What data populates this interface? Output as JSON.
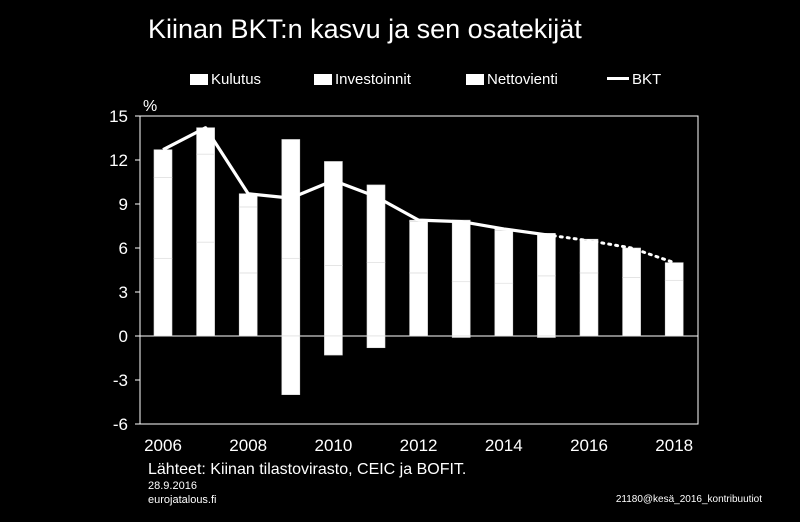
{
  "chart_data": {
    "type": "bar",
    "title": "Kiinan BKT:n kasvu ja sen osatekijät",
    "ylabel": "%",
    "xlabel": "",
    "ylim": [
      -6,
      15
    ],
    "yticks": [
      15,
      12,
      9,
      6,
      3,
      0,
      -3,
      -6
    ],
    "xticks": [
      "2006",
      "2008",
      "2010",
      "2012",
      "2014",
      "2016",
      "2018"
    ],
    "categories": [
      "2006",
      "2007",
      "2008",
      "2009",
      "2010",
      "2011",
      "2012",
      "2013",
      "2014",
      "2015",
      "2016",
      "2017",
      "2018"
    ],
    "series": [
      {
        "name": "Kulutus",
        "values": [
          5.3,
          6.4,
          4.3,
          5.3,
          4.8,
          5.0,
          4.3,
          3.7,
          3.6,
          4.1,
          4.3,
          4.0,
          3.8
        ]
      },
      {
        "name": "Investoinnit",
        "values": [
          5.5,
          6.0,
          4.5,
          8.1,
          7.1,
          5.3,
          3.5,
          4.2,
          3.6,
          2.9,
          2.2,
          2.0,
          1.2
        ]
      },
      {
        "name": "Nettovienti",
        "values": [
          1.9,
          1.8,
          0.9,
          -4.0,
          -1.3,
          -0.8,
          0.1,
          -0.1,
          0.1,
          -0.1,
          0.1,
          0.0,
          0.0
        ]
      },
      {
        "name": "BKT",
        "type": "line",
        "values": [
          12.7,
          14.2,
          9.7,
          9.4,
          10.6,
          9.5,
          7.9,
          7.8,
          7.3,
          6.9,
          6.5,
          6.0,
          5.0
        ],
        "dashed_from": "2015"
      }
    ],
    "legend": [
      "Kulutus",
      "Investoinnit",
      "Nettovienti",
      "BKT"
    ],
    "legend_position": "top"
  },
  "footer": {
    "source": "Lähteet: Kiinan tilastovirasto, CEIC ja BOFIT.",
    "date": "28.9.2016",
    "site": "eurojatalous.fi",
    "code": "21180@kesä_2016_kontribuutiot"
  },
  "colors": {
    "background": "#000000",
    "foreground": "#ffffff",
    "segment_divider": "#d9d9d9"
  }
}
